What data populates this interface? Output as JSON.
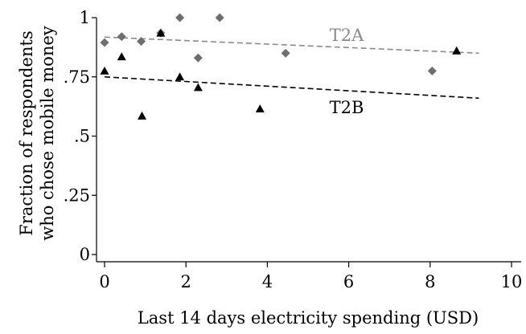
{
  "chart_data": {
    "type": "scatter",
    "title": "",
    "xlabel": "Last 14 days electricity spending (USD)",
    "ylabel": [
      "Fraction of respondents",
      "who chose mobile money"
    ],
    "xlim": [
      0,
      10
    ],
    "ylim": [
      0,
      1
    ],
    "x_ticks": [
      0,
      2,
      4,
      6,
      8,
      10
    ],
    "x_tick_labels": [
      "0",
      "2",
      "4",
      "6",
      "8",
      "10"
    ],
    "y_ticks": [
      0,
      0.25,
      0.5,
      0.75,
      1
    ],
    "y_tick_labels": [
      "0",
      ".25",
      ".5",
      ".75",
      "1"
    ],
    "grid": false,
    "legend": "none",
    "series": [
      {
        "name": "T2A",
        "marker": "diamond",
        "color": "#6e6e6e",
        "points": [
          {
            "x": 0.0,
            "y": 0.895
          },
          {
            "x": 0.42,
            "y": 0.92
          },
          {
            "x": 0.9,
            "y": 0.9
          },
          {
            "x": 1.38,
            "y": 0.935
          },
          {
            "x": 1.85,
            "y": 1.0
          },
          {
            "x": 2.3,
            "y": 0.83
          },
          {
            "x": 2.83,
            "y": 1.0
          },
          {
            "x": 4.45,
            "y": 0.85
          },
          {
            "x": 8.05,
            "y": 0.775
          }
        ],
        "trend": {
          "x": [
            0,
            9.2
          ],
          "y": [
            0.918,
            0.85
          ],
          "color": "#8a8a8a"
        }
      },
      {
        "name": "T2B",
        "marker": "triangle",
        "color": "#000000",
        "points": [
          {
            "x": 0.0,
            "y": 0.775
          },
          {
            "x": 0.42,
            "y": 0.835
          },
          {
            "x": 0.92,
            "y": 0.585
          },
          {
            "x": 1.38,
            "y": 0.935
          },
          {
            "x": 1.85,
            "y": 0.75
          },
          {
            "x": 2.3,
            "y": 0.705
          },
          {
            "x": 3.82,
            "y": 0.615
          },
          {
            "x": 8.65,
            "y": 0.86
          }
        ],
        "trend": {
          "x": [
            0,
            9.2
          ],
          "y": [
            0.75,
            0.66
          ],
          "color": "#000000"
        }
      }
    ],
    "annotations": [
      {
        "text": "T2A",
        "x": 5.95,
        "y": 0.925,
        "color": "#8a8a8a"
      },
      {
        "text": "T2B",
        "x": 5.95,
        "y": 0.62,
        "color": "#000000"
      }
    ]
  }
}
